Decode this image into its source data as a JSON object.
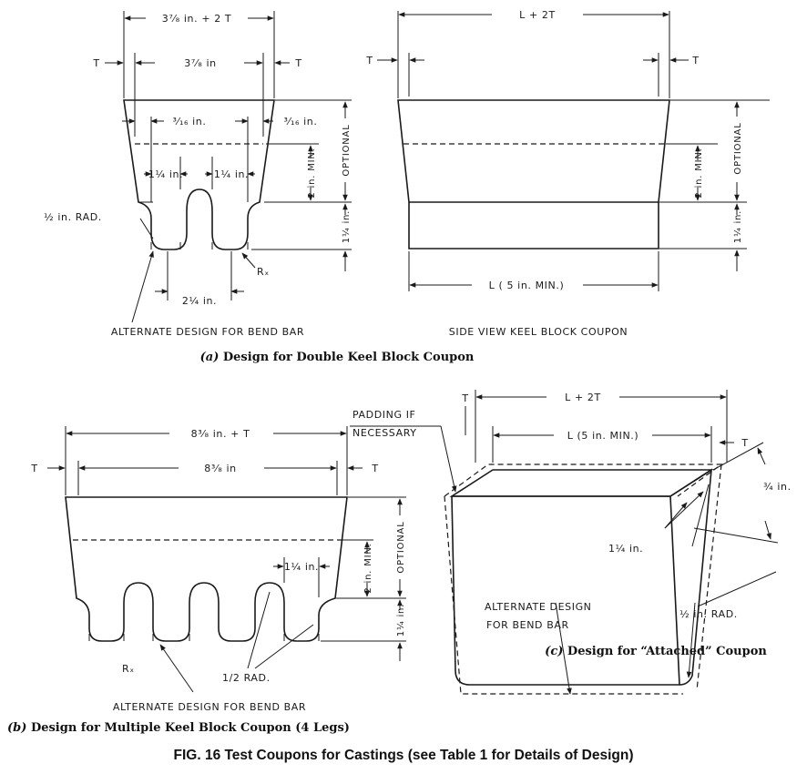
{
  "panel_a": {
    "dims": {
      "overall_width": "3⁷⁄₈ in. + 2 T",
      "t_left": "T",
      "inner_width": "3⁷⁄₈ in",
      "t_right": "T",
      "offset_left": "³⁄₁₆ in.",
      "offset_right": "³⁄₁₆ in.",
      "leg_left": "1¼ in.",
      "leg_right": "1¼ in.",
      "two_min": "2 in. MIN.",
      "optional": "OPTIONAL",
      "one_quarter": "1¼ in.",
      "rad": "½ in. RAD.",
      "rx": "Rₓ",
      "spacing": "2¼ in."
    },
    "note": "ALTERNATE DESIGN FOR BEND BAR",
    "side": {
      "top_dim": "L + 2T",
      "t_left": "T",
      "t_right": "T",
      "two_min": "2 in. MIN.",
      "optional": "OPTIONAL",
      "one_quarter": "1¼ in.",
      "bottom_dim": "L ( 5 in. MIN.)",
      "note": "SIDE VIEW KEEL BLOCK COUPON"
    },
    "caption_letter": "(a)",
    "caption_text": "Design for Double Keel Block Coupon"
  },
  "panel_b": {
    "dims": {
      "overall_width": "8³⁄₈ in. + T",
      "t_left": "T",
      "inner_width": "8³⁄₈ in",
      "t_right": "T",
      "leg": "1¼ in.",
      "two_min": "2 in. MIN.",
      "optional": "OPTIONAL",
      "one_quarter": "1¼ in.",
      "rx": "Rₓ",
      "rad": "1/2 RAD."
    },
    "note": "ALTERNATE DESIGN  FOR  BEND BAR",
    "caption_letter": "(b)",
    "caption_text": "Design for Multiple Keel Block Coupon (4 Legs)"
  },
  "panel_c": {
    "dims": {
      "t_left": "T",
      "top_dim": "L + 2T",
      "padding_1": "PADDING IF",
      "padding_2": "NECESSARY",
      "length": "L (5 in. MIN.)",
      "t_right": "T",
      "three_quarter": "¾ in.",
      "one_quarter": "1¼ in.",
      "rad": "½ in. RAD."
    },
    "note_1": "ALTERNATE DESIGN",
    "note_2": "FOR BEND BAR",
    "caption_letter": "(c)",
    "caption_text": "Design for “Attached” Coupon"
  },
  "figure_title": "FIG. 16 Test Coupons for Castings (see Table 1 for Details of Design)"
}
